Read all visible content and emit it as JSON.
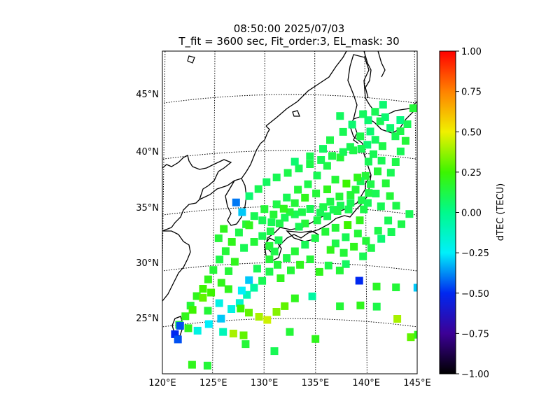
{
  "chart_data": {
    "type": "heatmap",
    "title_line1": "08:50:00 2025/07/03",
    "title_line2": "T_fit = 3600 sec, Fit_order:3, EL_mask: 30",
    "map": {
      "lon_range": [
        120,
        145
      ],
      "lat_range": [
        20,
        48
      ],
      "lon_ticks": [
        "120°E",
        "125°E",
        "130°E",
        "135°E",
        "140°E",
        "145°E"
      ],
      "lat_ticks": [
        "25°N",
        "30°N",
        "35°N",
        "40°N",
        "45°N"
      ],
      "grid": "dotted graticule",
      "coastlines": true
    },
    "colorbar": {
      "label": "dTEC (TECU)",
      "range": [
        -1.0,
        1.0
      ],
      "ticks": [
        "1.00",
        "0.75",
        "0.50",
        "0.25",
        "0.00",
        "−0.25",
        "−0.50",
        "−0.75",
        "−1.00"
      ],
      "colormap": "gist_ncar-like"
    },
    "points": [
      [
        141.8,
        44.5,
        0.05
      ],
      [
        143.5,
        43.3,
        0.02
      ],
      [
        144.8,
        44.5,
        0.15
      ],
      [
        141.5,
        43.0,
        0.1
      ],
      [
        142.5,
        42.5,
        0.05
      ],
      [
        140.5,
        42.0,
        0.05
      ],
      [
        141.0,
        41.3,
        0.08
      ],
      [
        140.2,
        40.8,
        0.05
      ],
      [
        140.8,
        40.0,
        0.1
      ],
      [
        141.6,
        39.5,
        0.1
      ],
      [
        140.3,
        39.3,
        0.1
      ],
      [
        141.2,
        38.5,
        0.15
      ],
      [
        140.0,
        38.0,
        0.15
      ],
      [
        139.5,
        37.5,
        0.1
      ],
      [
        140.5,
        37.3,
        0.12
      ],
      [
        139.0,
        36.7,
        0.15
      ],
      [
        140.3,
        36.5,
        0.12
      ],
      [
        138.5,
        36.2,
        0.15
      ],
      [
        139.6,
        35.8,
        0.12
      ],
      [
        138.5,
        35.5,
        0.1
      ],
      [
        137.4,
        36.0,
        0.15
      ],
      [
        137.5,
        35.2,
        0.1
      ],
      [
        136.5,
        35.5,
        0.12
      ],
      [
        136.8,
        34.8,
        0.1
      ],
      [
        135.8,
        35.0,
        0.12
      ],
      [
        135.5,
        34.5,
        0.1
      ],
      [
        134.5,
        34.8,
        0.1
      ],
      [
        133.7,
        34.5,
        0.12
      ],
      [
        133.0,
        34.3,
        0.1
      ],
      [
        132.5,
        34.5,
        0.15
      ],
      [
        132.0,
        34.0,
        0.1
      ],
      [
        131.5,
        33.5,
        0.12
      ],
      [
        130.7,
        33.6,
        0.1
      ],
      [
        130.6,
        32.8,
        0.12
      ],
      [
        131.4,
        32.0,
        0.1
      ],
      [
        130.5,
        31.5,
        0.15
      ],
      [
        131.0,
        31.0,
        0.12
      ],
      [
        134.0,
        33.5,
        0.15
      ],
      [
        133.4,
        33.2,
        0.1
      ],
      [
        135.2,
        33.8,
        0.12
      ],
      [
        136.2,
        34.2,
        0.1
      ],
      [
        137.2,
        34.7,
        0.12
      ],
      [
        138.3,
        34.9,
        0.1
      ],
      [
        139.8,
        35.0,
        0.12
      ],
      [
        140.2,
        35.6,
        0.1
      ],
      [
        139.4,
        34.0,
        0.2
      ],
      [
        138.2,
        33.5,
        0.25
      ],
      [
        137.0,
        33.2,
        0.15
      ],
      [
        141.0,
        36.5,
        0.1
      ],
      [
        142.0,
        37.5,
        0.15
      ],
      [
        142.5,
        38.5,
        0.1
      ],
      [
        143.0,
        39.5,
        0.12
      ],
      [
        143.5,
        40.5,
        0.1
      ],
      [
        144.0,
        41.5,
        0.15
      ],
      [
        143.0,
        41.8,
        0.1
      ],
      [
        141.7,
        40.8,
        0.12
      ],
      [
        139.5,
        41.5,
        0.12
      ],
      [
        138.5,
        40.5,
        0.1
      ],
      [
        137.5,
        39.5,
        0.15
      ],
      [
        136.2,
        38.7,
        0.12
      ],
      [
        135.2,
        37.8,
        0.1
      ],
      [
        134.3,
        37.0,
        0.12
      ],
      [
        133.3,
        36.5,
        0.15
      ],
      [
        132.2,
        35.8,
        0.1
      ],
      [
        131.2,
        35.2,
        0.12
      ],
      [
        130.0,
        34.8,
        0.15
      ],
      [
        129.0,
        34.2,
        0.1
      ],
      [
        128.2,
        33.5,
        0.15
      ],
      [
        127.5,
        32.8,
        0.12
      ],
      [
        126.8,
        32.0,
        0.2
      ],
      [
        126.2,
        31.2,
        0.15
      ],
      [
        125.6,
        30.5,
        0.12
      ],
      [
        125.0,
        29.6,
        0.15
      ],
      [
        124.5,
        28.8,
        0.2
      ],
      [
        124.0,
        28.0,
        0.25
      ],
      [
        123.4,
        27.4,
        0.2
      ],
      [
        122.8,
        26.6,
        0.15
      ],
      [
        122.3,
        25.7,
        0.2
      ],
      [
        121.7,
        25.0,
        0.15
      ],
      [
        121.3,
        24.2,
        -0.5
      ],
      [
        121.6,
        23.7,
        -0.45
      ],
      [
        123.5,
        24.3,
        -0.2
      ],
      [
        124.6,
        24.8,
        -0.25
      ],
      [
        125.8,
        25.2,
        -0.3
      ],
      [
        126.8,
        26.0,
        -0.2
      ],
      [
        127.6,
        26.5,
        -0.15
      ],
      [
        128.3,
        27.2,
        -0.1
      ],
      [
        129.0,
        27.8,
        -0.05
      ],
      [
        129.8,
        28.4,
        0.1
      ],
      [
        130.5,
        29.2,
        0.12
      ],
      [
        131.3,
        29.8,
        0.15
      ],
      [
        132.2,
        30.4,
        0.12
      ],
      [
        133.0,
        31.0,
        0.15
      ],
      [
        134.0,
        31.6,
        0.1
      ],
      [
        135.0,
        32.2,
        0.12
      ],
      [
        136.0,
        32.8,
        0.15
      ],
      [
        137.0,
        31.8,
        0.12
      ],
      [
        138.0,
        32.4,
        0.1
      ],
      [
        139.2,
        32.8,
        0.15
      ],
      [
        139.7,
        30.8,
        0.1
      ],
      [
        140.5,
        31.6,
        0.12
      ],
      [
        141.5,
        32.5,
        0.05
      ],
      [
        142.5,
        33.2,
        0.1
      ],
      [
        143.5,
        34.0,
        0.12
      ],
      [
        144.3,
        35.0,
        0.1
      ],
      [
        138.0,
        30.0,
        0.08
      ],
      [
        137.4,
        29.4,
        0.15
      ],
      [
        139.3,
        28.6,
        -0.5
      ],
      [
        141.0,
        28.2,
        0.18
      ],
      [
        142.9,
        28.3,
        0.15
      ],
      [
        145.0,
        28.5,
        -0.3
      ],
      [
        134.7,
        27.0,
        -0.05
      ],
      [
        137.4,
        26.2,
        0.15
      ],
      [
        139.4,
        26.4,
        0.2
      ],
      [
        141.0,
        26.4,
        0.12
      ],
      [
        143.0,
        25.5,
        0.4
      ],
      [
        144.3,
        24.0,
        0.3
      ],
      [
        145.0,
        24.3,
        0.2
      ],
      [
        135.0,
        23.2,
        0.2
      ],
      [
        132.5,
        23.8,
        0.15
      ],
      [
        131.0,
        22.1,
        0.1
      ],
      [
        128.0,
        23.6,
        0.3
      ],
      [
        127.0,
        23.8,
        0.4
      ],
      [
        126.0,
        24.0,
        -0.1
      ],
      [
        124.5,
        21.1,
        0.15
      ],
      [
        123.0,
        21.3,
        0.2
      ],
      [
        128.2,
        22.8,
        0.15
      ],
      [
        130.3,
        24.9,
        0.45
      ],
      [
        131.2,
        25.6,
        0.35
      ],
      [
        132.0,
        26.1,
        0.3
      ],
      [
        133.0,
        26.8,
        0.2
      ],
      [
        129.5,
        25.2,
        0.4
      ],
      [
        128.5,
        25.6,
        0.3
      ],
      [
        127.7,
        26.0,
        0.25
      ],
      [
        124.0,
        27.2,
        0.3
      ],
      [
        123.0,
        26.2,
        0.25
      ],
      [
        128.5,
        28.5,
        -0.3
      ],
      [
        127.8,
        27.6,
        -0.25
      ],
      [
        129.3,
        29.5,
        0.1
      ],
      [
        130.5,
        30.3,
        0.15
      ],
      [
        131.6,
        28.6,
        0.2
      ],
      [
        132.6,
        29.3,
        0.15
      ],
      [
        133.5,
        29.8,
        0.2
      ],
      [
        134.5,
        30.3,
        0.15
      ],
      [
        135.4,
        29.2,
        0.2
      ],
      [
        136.3,
        29.8,
        0.12
      ],
      [
        127.1,
        30.2,
        0.2
      ],
      [
        126.5,
        29.4,
        0.15
      ],
      [
        125.8,
        28.4,
        0.2
      ],
      [
        124.8,
        27.6,
        0.25
      ],
      [
        128.0,
        31.4,
        0.1
      ],
      [
        129.0,
        31.9,
        0.15
      ],
      [
        129.8,
        32.4,
        0.1
      ],
      [
        128.5,
        33.4,
        0.2
      ],
      [
        127.8,
        34.6,
        -0.3
      ],
      [
        127.2,
        35.5,
        -0.4
      ],
      [
        128.5,
        36.0,
        0.05
      ],
      [
        129.4,
        36.6,
        0.1
      ],
      [
        130.2,
        37.2,
        0.08
      ],
      [
        131.2,
        37.6,
        0.1
      ],
      [
        132.3,
        38.0,
        0.12
      ],
      [
        133.4,
        38.4,
        0.1
      ],
      [
        134.5,
        38.8,
        0.12
      ],
      [
        135.6,
        39.2,
        0.1
      ],
      [
        136.7,
        39.6,
        0.12
      ],
      [
        137.8,
        40.0,
        0.1
      ],
      [
        138.8,
        40.2,
        0.12
      ],
      [
        139.6,
        40.4,
        0.1
      ],
      [
        140.3,
        43.0,
        0.05
      ],
      [
        139.8,
        43.5,
        0.08
      ],
      [
        141.0,
        43.8,
        0.1
      ],
      [
        142.0,
        43.4,
        0.05
      ],
      [
        143.5,
        42.3,
        0.12
      ],
      [
        144.2,
        43.0,
        0.1
      ],
      [
        137.8,
        41.8,
        0.1
      ],
      [
        136.5,
        41.0,
        0.12
      ],
      [
        135.8,
        40.2,
        0.08
      ],
      [
        134.5,
        39.5,
        0.1
      ],
      [
        133.0,
        39.0,
        0.05
      ],
      [
        137.5,
        43.2,
        0.08
      ],
      [
        138.7,
        42.5,
        0.05
      ],
      [
        139.2,
        37.8,
        0.2
      ],
      [
        138.1,
        37.2,
        0.25
      ],
      [
        137.0,
        37.5,
        0.15
      ],
      [
        136.2,
        36.6,
        0.2
      ],
      [
        135.1,
        36.2,
        0.15
      ],
      [
        134.0,
        35.8,
        0.2
      ],
      [
        133.0,
        35.3,
        0.15
      ],
      [
        131.9,
        34.8,
        0.2
      ],
      [
        130.9,
        34.3,
        0.15
      ],
      [
        129.8,
        33.8,
        0.1
      ],
      [
        126.0,
        33.2,
        0.2
      ],
      [
        125.5,
        32.4,
        0.15
      ],
      [
        126.5,
        27.8,
        0.2
      ],
      [
        124.5,
        26.0,
        0.15
      ],
      [
        125.6,
        26.6,
        -0.2
      ],
      [
        122.6,
        24.6,
        0.2
      ],
      [
        121.8,
        24.9,
        -0.45
      ],
      [
        136.5,
        31.2,
        0.2
      ],
      [
        137.8,
        31.0,
        0.15
      ],
      [
        138.8,
        31.6,
        0.2
      ],
      [
        140.0,
        32.2,
        0.15
      ],
      [
        141.2,
        33.2,
        0.12
      ],
      [
        142.2,
        34.2,
        0.1
      ],
      [
        143.0,
        35.6,
        0.12
      ],
      [
        142.4,
        36.4,
        0.15
      ],
      [
        141.5,
        35.4,
        0.1
      ]
    ]
  }
}
